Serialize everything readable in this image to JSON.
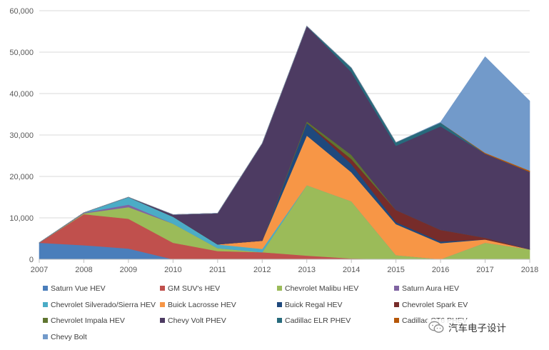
{
  "chart_data": {
    "type": "area",
    "stacked": true,
    "title": "",
    "xlabel": "",
    "ylabel": "",
    "ylim": [
      0,
      60000
    ],
    "yticks": [
      0,
      10000,
      20000,
      30000,
      40000,
      50000,
      60000
    ],
    "ytick_labels": [
      "0",
      "10,000",
      "20,000",
      "30,000",
      "40,000",
      "50,000",
      "60,000"
    ],
    "grid": true,
    "legend_position": "bottom",
    "x": [
      "2007",
      "2008",
      "2009",
      "2010",
      "2011",
      "2012",
      "2013",
      "2014",
      "2015",
      "2016",
      "2017",
      "2018"
    ],
    "series": [
      {
        "name": "Saturn Vue HEV",
        "color": "#4a7ebb",
        "values": [
          4000,
          3400,
          2600,
          0,
          0,
          0,
          0,
          0,
          0,
          0,
          0,
          0
        ]
      },
      {
        "name": "GM SUV's HEV",
        "color": "#c0504d",
        "values": [
          0,
          7500,
          7200,
          4000,
          2000,
          1700,
          900,
          200,
          0,
          0,
          0,
          0
        ]
      },
      {
        "name": "Chevrolet Malibu HEV",
        "color": "#9bbb59",
        "values": [
          0,
          200,
          2800,
          4600,
          700,
          0,
          17000,
          13800,
          1000,
          0,
          4000,
          2400
        ]
      },
      {
        "name": "Saturn Aura HEV",
        "color": "#8064a2",
        "values": [
          0,
          150,
          600,
          0,
          0,
          0,
          0,
          0,
          0,
          0,
          0,
          0
        ]
      },
      {
        "name": "Chevrolet Silverado/Sierra HEV",
        "color": "#4bacc6",
        "values": [
          0,
          0,
          1800,
          1700,
          900,
          800,
          0,
          0,
          0,
          0,
          0,
          0
        ]
      },
      {
        "name": "Buick Lacrosse HEV",
        "color": "#f79646",
        "values": [
          0,
          0,
          0,
          0,
          0,
          2000,
          12000,
          7000,
          7500,
          3900,
          800,
          0
        ]
      },
      {
        "name": "Buick Regal HEV",
        "color": "#1f497d",
        "values": [
          0,
          0,
          0,
          0,
          0,
          0,
          3000,
          2000,
          500,
          400,
          0,
          0
        ]
      },
      {
        "name": "Chevrolet Spark EV",
        "color": "#772c2a",
        "values": [
          0,
          0,
          0,
          0,
          0,
          0,
          0,
          1200,
          2900,
          2800,
          400,
          0
        ]
      },
      {
        "name": "Chevrolet Impala HEV",
        "color": "#5f7530",
        "values": [
          0,
          0,
          0,
          0,
          0,
          0,
          400,
          1000,
          0,
          0,
          0,
          0
        ]
      },
      {
        "name": "Chevy Volt PHEV",
        "color": "#4d3b62",
        "values": [
          0,
          0,
          0,
          500,
          7500,
          23500,
          23000,
          20000,
          15500,
          25000,
          20300,
          18700
        ]
      },
      {
        "name": "Cadillac ELR PHEV",
        "color": "#276a7c",
        "values": [
          0,
          0,
          0,
          0,
          0,
          0,
          0,
          1000,
          800,
          900,
          0,
          0
        ]
      },
      {
        "name": "Cadillac CT6 PHEV",
        "color": "#b65708",
        "values": [
          0,
          0,
          0,
          0,
          0,
          0,
          0,
          0,
          0,
          0,
          200,
          300
        ]
      },
      {
        "name": "Chevy Bolt",
        "color": "#729aca",
        "values": [
          0,
          0,
          0,
          0,
          0,
          0,
          0,
          0,
          0,
          100,
          23200,
          16800
        ]
      }
    ]
  },
  "legend": {
    "labels": [
      "Saturn Vue HEV",
      "GM SUV's HEV",
      "Chevrolet Malibu HEV",
      "Saturn Aura HEV",
      "Chevrolet Silverado/Sierra HEV",
      "Buick Lacrosse HEV",
      "Buick Regal HEV",
      "Chevrolet Spark EV",
      "Chevrolet Impala HEV",
      "Chevy Volt PHEV",
      "Cadillac ELR PHEV",
      "Cadillac CT6 PHEV",
      "Chevy Bolt"
    ]
  },
  "watermark": {
    "text": "汽车电子设计",
    "icon": "wechat-icon"
  }
}
